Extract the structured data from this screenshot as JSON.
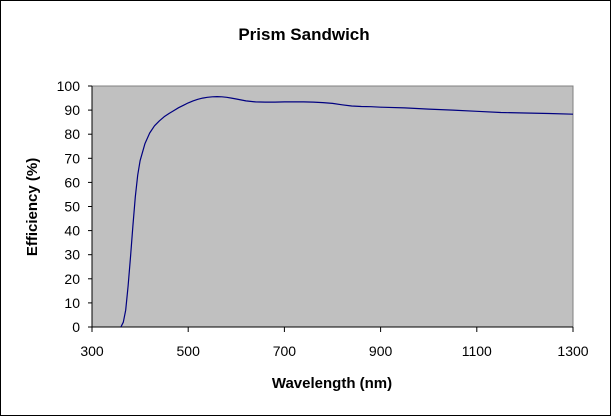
{
  "chart_data": {
    "type": "line",
    "title": "Prism Sandwich",
    "xlabel": "Wavelength (nm)",
    "ylabel": "Efficiency (%)",
    "xlim": [
      300,
      1300
    ],
    "ylim": [
      0,
      100
    ],
    "x_ticks": [
      300,
      500,
      700,
      900,
      1100,
      1300
    ],
    "y_ticks": [
      0,
      10,
      20,
      30,
      40,
      50,
      60,
      70,
      80,
      90,
      100
    ],
    "grid": false,
    "legend": "none",
    "plot_background": "#C0C0C0",
    "series": [
      {
        "color": "#000080",
        "x": [
          360,
          365,
          370,
          375,
          380,
          385,
          390,
          395,
          400,
          410,
          420,
          430,
          440,
          450,
          460,
          470,
          480,
          490,
          500,
          510,
          520,
          530,
          540,
          550,
          560,
          570,
          580,
          590,
          600,
          620,
          640,
          660,
          680,
          700,
          720,
          740,
          760,
          780,
          800,
          820,
          840,
          860,
          880,
          900,
          950,
          1000,
          1050,
          1100,
          1150,
          1200,
          1250,
          1300
        ],
        "y": [
          0,
          2,
          7,
          17,
          29,
          42,
          54,
          63,
          69,
          76,
          80.5,
          83.5,
          85.5,
          87.2,
          88.6,
          89.8,
          91,
          92,
          93,
          93.8,
          94.5,
          95,
          95.3,
          95.5,
          95.6,
          95.5,
          95.3,
          95,
          94.6,
          93.8,
          93.4,
          93.3,
          93.3,
          93.4,
          93.4,
          93.4,
          93.3,
          93.1,
          92.8,
          92.2,
          91.7,
          91.5,
          91.4,
          91.2,
          90.9,
          90.4,
          90,
          89.5,
          89,
          88.8,
          88.6,
          88.3
        ]
      }
    ]
  }
}
